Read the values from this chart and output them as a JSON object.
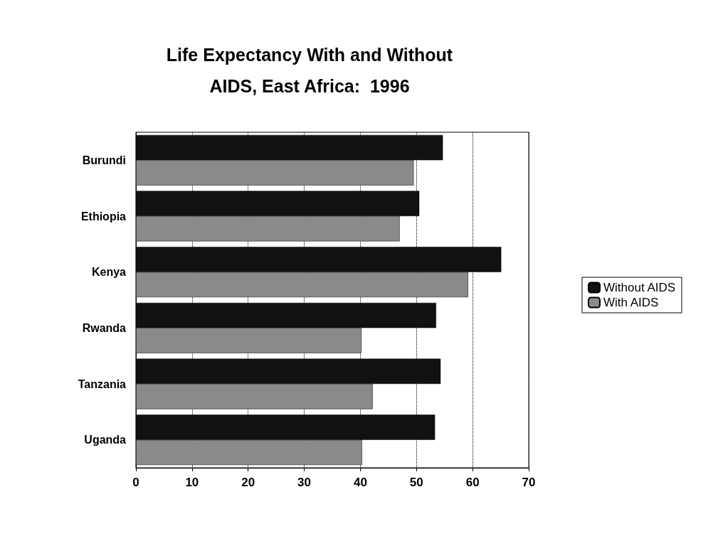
{
  "chart_data": {
    "type": "bar",
    "orientation": "horizontal",
    "title": "Life Expectancy With and Without\nAIDS, East Africa:  1996",
    "categories": [
      "Burundi",
      "Ethiopia",
      "Kenya",
      "Rwanda",
      "Tanzania",
      "Uganda"
    ],
    "series": [
      {
        "name": "Without AIDS",
        "color": "#111111",
        "values": [
          54.7,
          50.5,
          65.1,
          53.5,
          54.3,
          53.3
        ]
      },
      {
        "name": "With AIDS",
        "color": "#8a8a8a",
        "values": [
          49.5,
          47.0,
          59.2,
          40.2,
          42.2,
          40.3
        ]
      }
    ],
    "xlim": [
      0,
      70
    ],
    "xticks": [
      0,
      10,
      20,
      30,
      40,
      50,
      60,
      70
    ],
    "grid": "x",
    "legend": "right"
  }
}
